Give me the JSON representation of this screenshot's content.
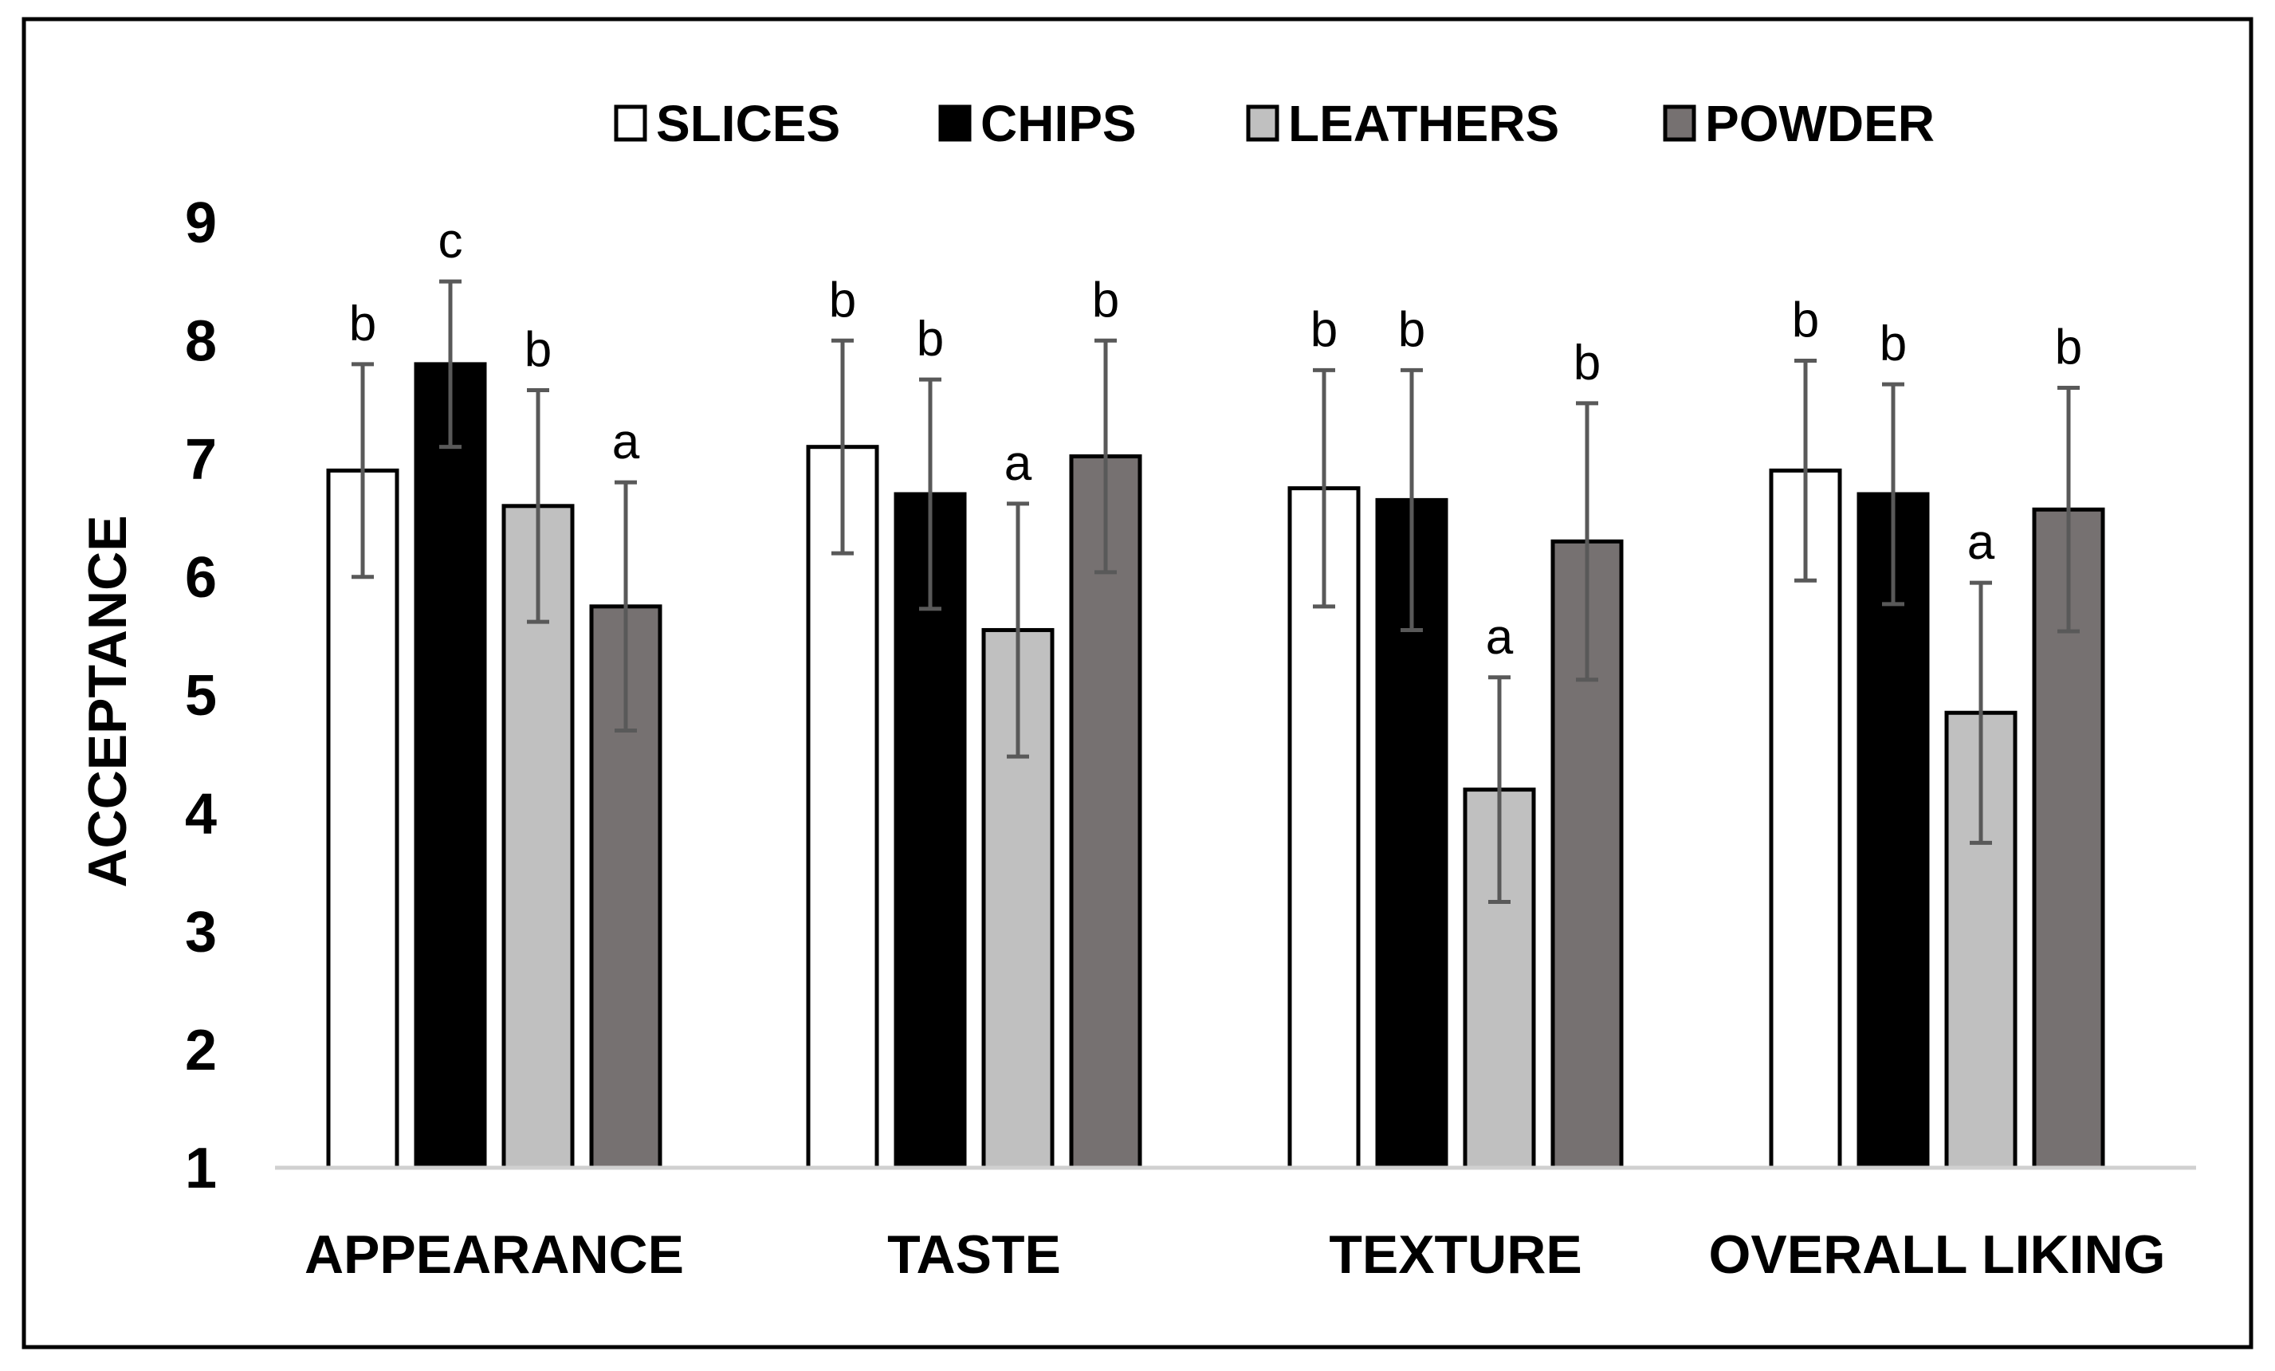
{
  "chart_data": {
    "type": "bar",
    "title": "",
    "xlabel": "",
    "ylabel": "ACCEPTANCE",
    "ylim": [
      1,
      9
    ],
    "yticks": [
      1,
      2,
      3,
      4,
      5,
      6,
      7,
      8,
      9
    ],
    "grid": false,
    "legend_position": "top-center",
    "categories": [
      "APPEARANCE",
      "TASTE",
      "TEXTURE",
      "OVERALL LIKING"
    ],
    "series": [
      {
        "name": "SLICES",
        "color": "#ffffff",
        "values": [
          6.9,
          7.1,
          6.75,
          6.9
        ],
        "errors": [
          0.9,
          0.9,
          1.0,
          0.93
        ],
        "letters": [
          "b",
          "b",
          "b",
          "b"
        ]
      },
      {
        "name": "CHIPS",
        "color": "#000000",
        "values": [
          7.8,
          6.7,
          6.65,
          6.7
        ],
        "errors": [
          0.7,
          0.97,
          1.1,
          0.93
        ],
        "letters": [
          "c",
          "b",
          "b",
          "b"
        ]
      },
      {
        "name": "LEATHERS",
        "color": "#c0c0c0",
        "values": [
          6.6,
          5.55,
          4.2,
          4.85
        ],
        "errors": [
          0.98,
          1.07,
          0.95,
          1.1
        ],
        "letters": [
          "b",
          "a",
          "a",
          "a"
        ]
      },
      {
        "name": "POWDER",
        "color": "#767171",
        "values": [
          5.75,
          7.02,
          6.3,
          6.57
        ],
        "errors": [
          1.05,
          0.98,
          1.17,
          1.03
        ],
        "letters": [
          "a",
          "b",
          "b",
          "b"
        ]
      }
    ]
  }
}
